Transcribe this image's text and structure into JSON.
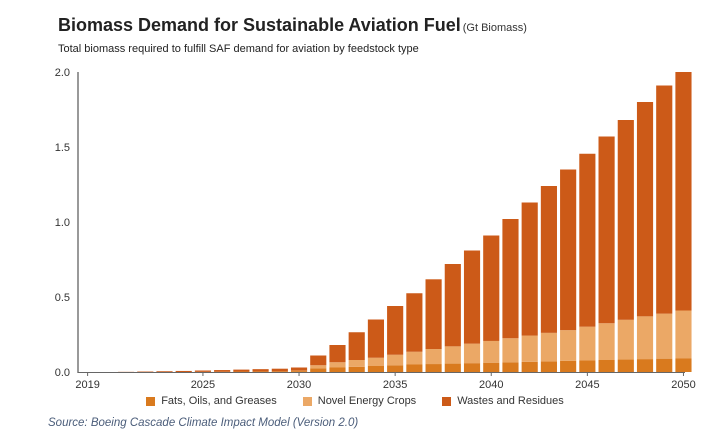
{
  "title": "Biomass Demand for Sustainable Aviation Fuel",
  "title_unit": "(Gt Biomass)",
  "subtitle": "Total biomass required to fulfill SAF demand for aviation by feedstock type",
  "source": "Source: Boeing Cascade Climate Impact Model (Version 2.0)",
  "colors": {
    "fats": "#d97a1e",
    "crops": "#eba866",
    "wastes": "#cc5a18"
  },
  "chart_data": {
    "type": "bar",
    "stacked": true,
    "x": [
      2019,
      2020,
      2021,
      2022,
      2023,
      2024,
      2025,
      2026,
      2027,
      2028,
      2029,
      2030,
      2031,
      2032,
      2033,
      2034,
      2035,
      2036,
      2037,
      2038,
      2039,
      2040,
      2041,
      2042,
      2043,
      2044,
      2045,
      2046,
      2047,
      2048,
      2049,
      2050
    ],
    "x_ticks": [
      "2019",
      "2025",
      "2030",
      "2035",
      "2040",
      "2045",
      "2050"
    ],
    "y_ticks": [
      "0.0",
      "0.5",
      "1.0",
      "1.5",
      "2.0"
    ],
    "ylim": [
      0,
      2.0
    ],
    "grid": false,
    "legend_position": "bottom",
    "series": [
      {
        "name": "Fats, Oils, and Greases",
        "color": "#d97a1e",
        "values": [
          0,
          0,
          0,
          0,
          0,
          0,
          0.001,
          0.002,
          0.003,
          0.004,
          0.005,
          0.006,
          0.025,
          0.03,
          0.035,
          0.04,
          0.045,
          0.05,
          0.053,
          0.056,
          0.059,
          0.062,
          0.065,
          0.068,
          0.071,
          0.074,
          0.077,
          0.08,
          0.083,
          0.086,
          0.089,
          0.09
        ]
      },
      {
        "name": "Novel Energy Crops",
        "color": "#eba866",
        "values": [
          0,
          0,
          0,
          0,
          0,
          0,
          0,
          0,
          0,
          0,
          0,
          0.004,
          0.02,
          0.035,
          0.045,
          0.055,
          0.07,
          0.085,
          0.1,
          0.115,
          0.13,
          0.145,
          0.16,
          0.175,
          0.19,
          0.205,
          0.225,
          0.245,
          0.265,
          0.285,
          0.3,
          0.32
        ]
      },
      {
        "name": "Wastes and Residues",
        "color": "#cc5a18",
        "values": [
          0,
          0,
          0.001,
          0.003,
          0.005,
          0.007,
          0.009,
          0.011,
          0.013,
          0.015,
          0.017,
          0.02,
          0.065,
          0.115,
          0.185,
          0.255,
          0.325,
          0.39,
          0.465,
          0.549,
          0.621,
          0.703,
          0.795,
          0.887,
          0.979,
          1.071,
          1.153,
          1.245,
          1.332,
          1.429,
          1.521,
          1.59
        ]
      }
    ]
  }
}
